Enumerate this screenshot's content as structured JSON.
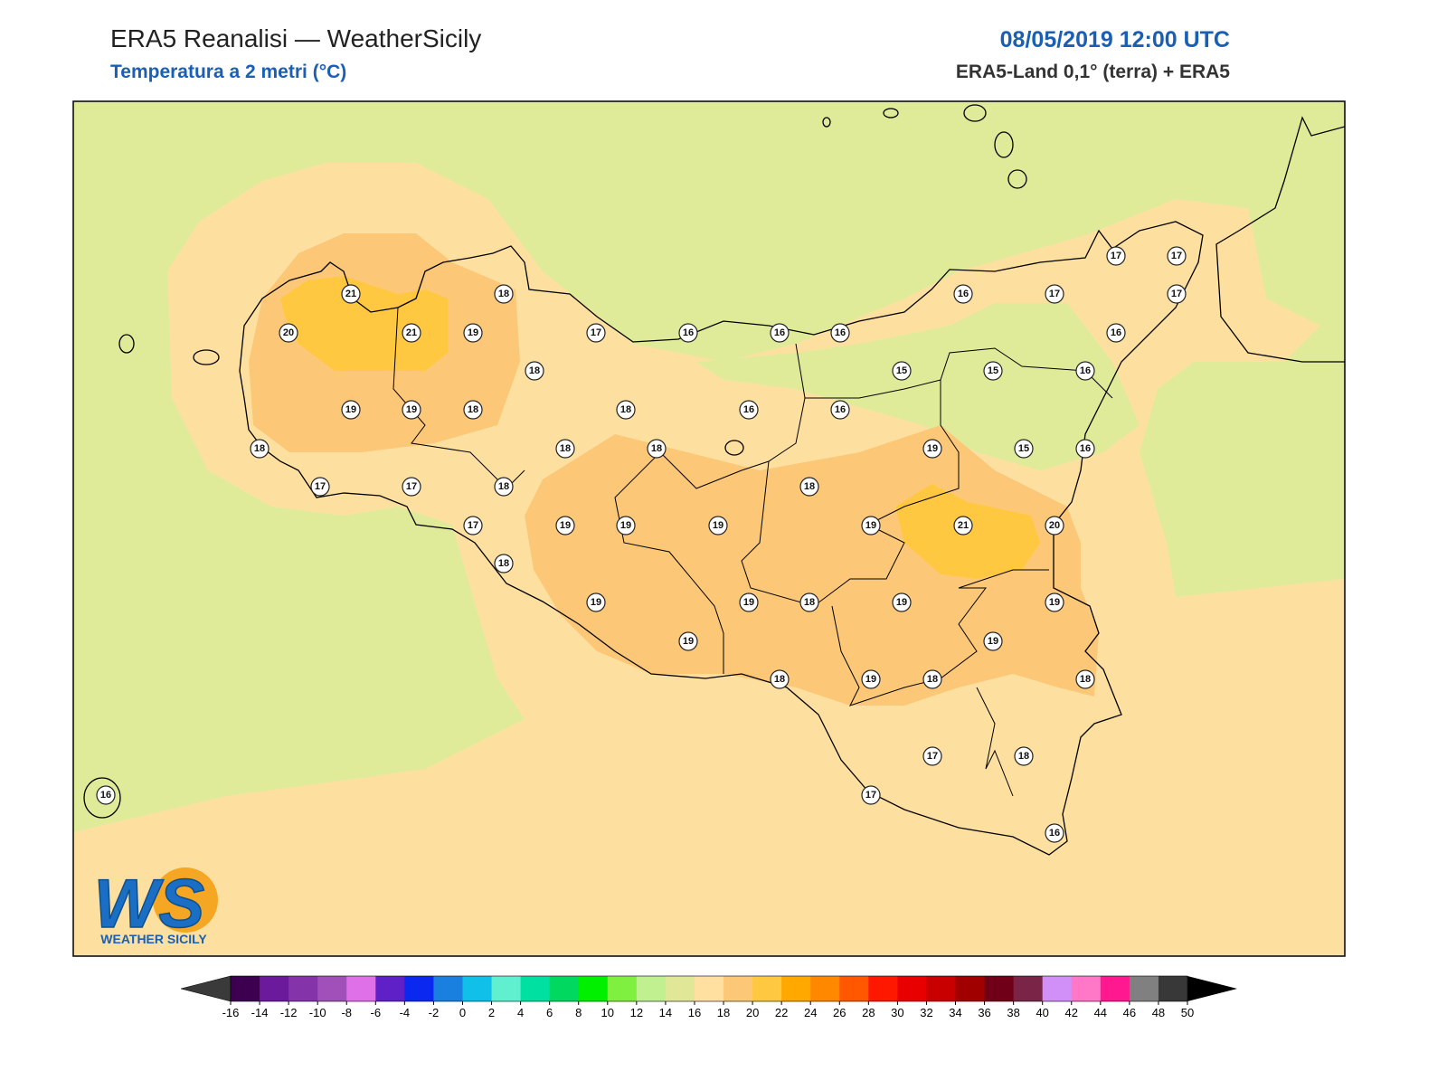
{
  "header": {
    "title": "ERA5 Reanalisi — WeatherSicily",
    "subtitle": "Temperatura a 2 metri (°C)",
    "date": "08/05/2019 12:00 UTC",
    "source": "ERA5-Land 0,1° (terra) + ERA5"
  },
  "stations": [
    21,
    18,
    20,
    21,
    19,
    17,
    16,
    16,
    16,
    16,
    17,
    17,
    17,
    17,
    16,
    18,
    15,
    15,
    16,
    19,
    19,
    18,
    18,
    16,
    16,
    18,
    18,
    18,
    19,
    15,
    16,
    17,
    17,
    18,
    18,
    17,
    19,
    19,
    19,
    19,
    21,
    20,
    18,
    19,
    19,
    18,
    19,
    19,
    19,
    19,
    18,
    19,
    18,
    18,
    17,
    18,
    16,
    17,
    16
  ],
  "colorbar": {
    "ticks": [
      -16,
      -14,
      -12,
      -10,
      -8,
      -6,
      -4,
      -2,
      0,
      2,
      4,
      6,
      8,
      10,
      12,
      14,
      16,
      18,
      20,
      22,
      24,
      26,
      28,
      30,
      32,
      34,
      36,
      38,
      40,
      42,
      44,
      46,
      48,
      50
    ],
    "colors": [
      "#3d0050",
      "#6a1a9a",
      "#8433a8",
      "#a050b8",
      "#e070e8",
      "#6020c8",
      "#0a28f0",
      "#1a80e0",
      "#10c0e8",
      "#60f0d0",
      "#00e0a0",
      "#00d860",
      "#00f000",
      "#80f040",
      "#c0f090",
      "#e0e898",
      "#ffe0a0",
      "#fcc878",
      "#ffc840",
      "#ffa800",
      "#ff8800",
      "#ff5800",
      "#ff1800",
      "#e80000",
      "#c80000",
      "#a00000",
      "#700018",
      "#7a2448",
      "#d090f8",
      "#ff78c8",
      "#ff1890",
      "#808080",
      "#383838"
    ],
    "under": "#3a3a3a",
    "over": "#000000"
  },
  "logo": {
    "letters": "WS",
    "name": "WEATHER SICILY"
  }
}
